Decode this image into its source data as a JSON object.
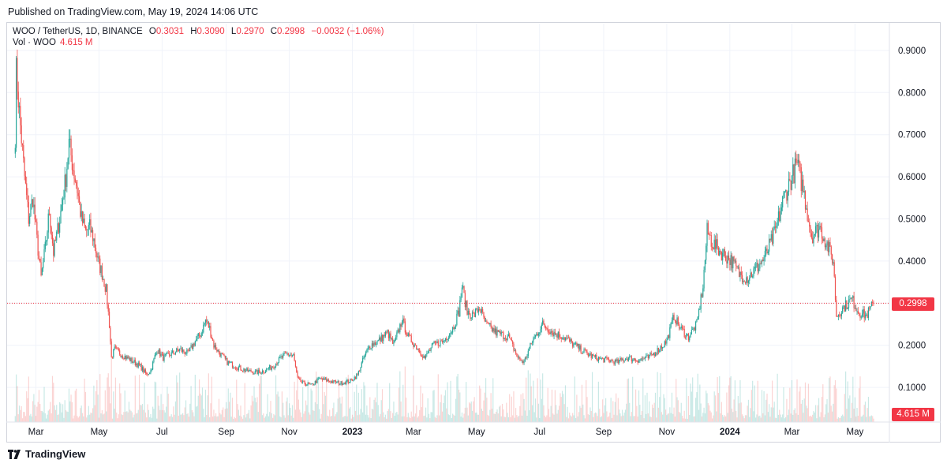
{
  "header": {
    "published": "Published on TradingView.com, May 19, 2024 14:06 UTC"
  },
  "legend": {
    "symbol": "WOO / TetherUS, 1D, BINANCE",
    "o_label": "O",
    "o_value": "0.3031",
    "h_label": "H",
    "h_value": "0.3090",
    "l_label": "L",
    "l_value": "0.2970",
    "c_label": "C",
    "c_value": "0.2998",
    "change": "−0.0032 (−1.06%)",
    "vol_label": "Vol · WOO",
    "vol_value": "4.615 M"
  },
  "price_tag": "0.2998",
  "vol_tag": "4.615 M",
  "brand": "TradingView",
  "colors": {
    "up": "#26a69a",
    "down": "#ef5350",
    "last": "#f23645",
    "grid": "#f0f3fa",
    "axis_text": "#131722"
  },
  "chart_data": {
    "type": "candlestick",
    "symbol": "WOO / TetherUS",
    "interval": "1D",
    "exchange": "BINANCE",
    "ylim": [
      0.0,
      0.95
    ],
    "y_ticks": [
      "0.1000",
      "0.2000",
      "0.3000",
      "0.4000",
      "0.5000",
      "0.6000",
      "0.7000",
      "0.8000",
      "0.9000"
    ],
    "y_tick_values": [
      0.1,
      0.2,
      0.3,
      0.4,
      0.5,
      0.6,
      0.7,
      0.8,
      0.9
    ],
    "x_ticks": [
      "Mar",
      "May",
      "Jul",
      "Sep",
      "Nov",
      "2023",
      "Mar",
      "May",
      "Jul",
      "Sep",
      "Nov",
      "2024",
      "Mar",
      "May"
    ],
    "x_tick_dates": [
      "2022-03-01",
      "2022-05-01",
      "2022-07-01",
      "2022-09-01",
      "2022-11-01",
      "2023-01-01",
      "2023-03-01",
      "2023-05-01",
      "2023-07-01",
      "2023-09-01",
      "2023-11-01",
      "2024-01-01",
      "2024-03-01",
      "2024-05-01"
    ],
    "x_range": [
      "2022-02-08",
      "2024-05-19"
    ],
    "last_price": 0.2998,
    "price_path": [
      [
        "2022-02-09",
        0.7
      ],
      [
        "2022-02-10",
        0.85
      ],
      [
        "2022-02-14",
        0.72
      ],
      [
        "2022-02-18",
        0.6
      ],
      [
        "2022-02-22",
        0.5
      ],
      [
        "2022-02-26",
        0.55
      ],
      [
        "2022-03-02",
        0.45
      ],
      [
        "2022-03-06",
        0.36
      ],
      [
        "2022-03-10",
        0.43
      ],
      [
        "2022-03-14",
        0.52
      ],
      [
        "2022-03-18",
        0.42
      ],
      [
        "2022-03-24",
        0.5
      ],
      [
        "2022-03-30",
        0.6
      ],
      [
        "2022-04-02",
        0.68
      ],
      [
        "2022-04-06",
        0.62
      ],
      [
        "2022-04-10",
        0.57
      ],
      [
        "2022-04-14",
        0.5
      ],
      [
        "2022-04-18",
        0.47
      ],
      [
        "2022-04-22",
        0.48
      ],
      [
        "2022-04-26",
        0.45
      ],
      [
        "2022-04-30",
        0.4
      ],
      [
        "2022-05-04",
        0.37
      ],
      [
        "2022-05-08",
        0.33
      ],
      [
        "2022-05-11",
        0.25
      ],
      [
        "2022-05-13",
        0.17
      ],
      [
        "2022-05-16",
        0.19
      ],
      [
        "2022-05-22",
        0.18
      ],
      [
        "2022-05-28",
        0.17
      ],
      [
        "2022-06-04",
        0.16
      ],
      [
        "2022-06-10",
        0.15
      ],
      [
        "2022-06-16",
        0.13
      ],
      [
        "2022-06-20",
        0.14
      ],
      [
        "2022-06-26",
        0.19
      ],
      [
        "2022-07-02",
        0.17
      ],
      [
        "2022-07-10",
        0.18
      ],
      [
        "2022-07-18",
        0.19
      ],
      [
        "2022-07-26",
        0.18
      ],
      [
        "2022-08-02",
        0.21
      ],
      [
        "2022-08-08",
        0.23
      ],
      [
        "2022-08-12",
        0.26
      ],
      [
        "2022-08-16",
        0.24
      ],
      [
        "2022-08-20",
        0.2
      ],
      [
        "2022-08-26",
        0.18
      ],
      [
        "2022-09-02",
        0.16
      ],
      [
        "2022-09-10",
        0.15
      ],
      [
        "2022-09-20",
        0.14
      ],
      [
        "2022-09-30",
        0.135
      ],
      [
        "2022-10-08",
        0.14
      ],
      [
        "2022-10-16",
        0.15
      ],
      [
        "2022-10-24",
        0.17
      ],
      [
        "2022-10-30",
        0.18
      ],
      [
        "2022-11-05",
        0.175
      ],
      [
        "2022-11-09",
        0.12
      ],
      [
        "2022-11-14",
        0.11
      ],
      [
        "2022-11-22",
        0.105
      ],
      [
        "2022-11-30",
        0.12
      ],
      [
        "2022-12-10",
        0.115
      ],
      [
        "2022-12-20",
        0.11
      ],
      [
        "2022-12-30",
        0.115
      ],
      [
        "2023-01-06",
        0.13
      ],
      [
        "2023-01-12",
        0.17
      ],
      [
        "2023-01-18",
        0.2
      ],
      [
        "2023-01-26",
        0.21
      ],
      [
        "2023-02-04",
        0.23
      ],
      [
        "2023-02-10",
        0.2
      ],
      [
        "2023-02-18",
        0.26
      ],
      [
        "2023-02-24",
        0.22
      ],
      [
        "2023-03-06",
        0.19
      ],
      [
        "2023-03-12",
        0.17
      ],
      [
        "2023-03-20",
        0.2
      ],
      [
        "2023-03-30",
        0.21
      ],
      [
        "2023-04-08",
        0.24
      ],
      [
        "2023-04-14",
        0.28
      ],
      [
        "2023-04-17",
        0.34
      ],
      [
        "2023-04-22",
        0.28
      ],
      [
        "2023-04-28",
        0.27
      ],
      [
        "2023-05-04",
        0.29
      ],
      [
        "2023-05-10",
        0.25
      ],
      [
        "2023-05-20",
        0.23
      ],
      [
        "2023-06-01",
        0.22
      ],
      [
        "2023-06-10",
        0.17
      ],
      [
        "2023-06-16",
        0.16
      ],
      [
        "2023-06-24",
        0.21
      ],
      [
        "2023-07-04",
        0.25
      ],
      [
        "2023-07-14",
        0.23
      ],
      [
        "2023-07-24",
        0.22
      ],
      [
        "2023-08-04",
        0.2
      ],
      [
        "2023-08-16",
        0.18
      ],
      [
        "2023-08-24",
        0.17
      ],
      [
        "2023-09-04",
        0.165
      ],
      [
        "2023-09-14",
        0.16
      ],
      [
        "2023-09-24",
        0.17
      ],
      [
        "2023-10-04",
        0.165
      ],
      [
        "2023-10-14",
        0.17
      ],
      [
        "2023-10-24",
        0.19
      ],
      [
        "2023-11-01",
        0.21
      ],
      [
        "2023-11-08",
        0.27
      ],
      [
        "2023-11-14",
        0.24
      ],
      [
        "2023-11-22",
        0.22
      ],
      [
        "2023-11-30",
        0.25
      ],
      [
        "2023-12-06",
        0.34
      ],
      [
        "2023-12-10",
        0.47
      ],
      [
        "2023-12-16",
        0.44
      ],
      [
        "2023-12-24",
        0.42
      ],
      [
        "2024-01-03",
        0.4
      ],
      [
        "2024-01-10",
        0.37
      ],
      [
        "2024-01-18",
        0.36
      ],
      [
        "2024-01-26",
        0.38
      ],
      [
        "2024-02-04",
        0.41
      ],
      [
        "2024-02-14",
        0.47
      ],
      [
        "2024-02-22",
        0.55
      ],
      [
        "2024-03-01",
        0.6
      ],
      [
        "2024-03-06",
        0.63
      ],
      [
        "2024-03-12",
        0.57
      ],
      [
        "2024-03-20",
        0.46
      ],
      [
        "2024-03-28",
        0.48
      ],
      [
        "2024-04-04",
        0.44
      ],
      [
        "2024-04-10",
        0.4
      ],
      [
        "2024-04-13",
        0.27
      ],
      [
        "2024-04-20",
        0.29
      ],
      [
        "2024-04-28",
        0.31
      ],
      [
        "2024-05-04",
        0.28
      ],
      [
        "2024-05-12",
        0.27
      ],
      [
        "2024-05-19",
        0.2998
      ]
    ]
  }
}
